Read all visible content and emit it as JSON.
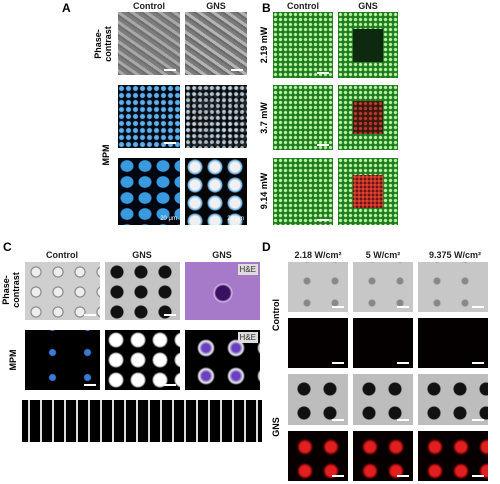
{
  "panels": {
    "a": {
      "label": "A",
      "columns": [
        "Control",
        "GNS"
      ],
      "rows": [
        "Phase-contrast",
        "MPM"
      ],
      "scale_label": "20 μm"
    },
    "b": {
      "label": "B",
      "columns": [
        "Control",
        "GNS"
      ],
      "rows": [
        "2.19 mW",
        "3.7 mW",
        "9.14 mW"
      ]
    },
    "c": {
      "label": "C",
      "columns": [
        "Control",
        "GNS",
        "GNS"
      ],
      "rows": [
        "Phase-contrast",
        "MPM"
      ],
      "stain_label": "H&E"
    },
    "d": {
      "label": "D",
      "columns": [
        "2.18 W/cm²",
        "5 W/cm²",
        "9.375 W/cm²"
      ],
      "rows": [
        "Control",
        "GNS"
      ]
    }
  }
}
